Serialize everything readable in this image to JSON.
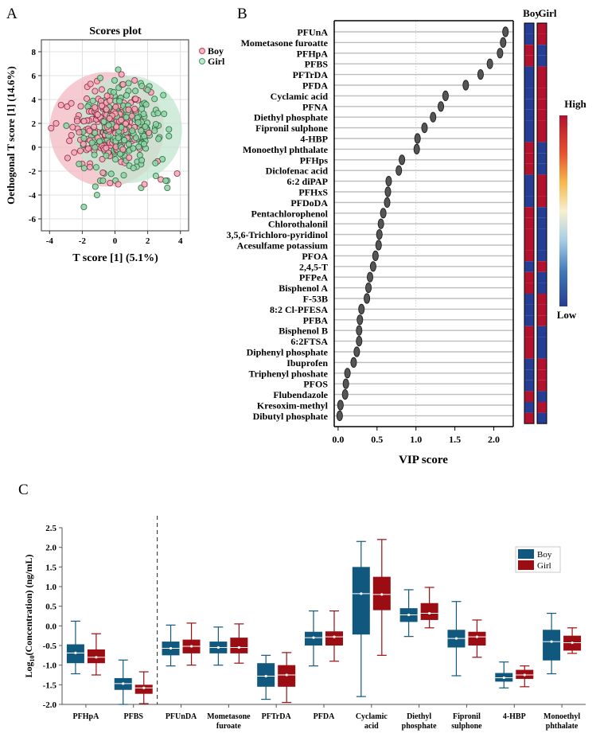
{
  "chart_data": [
    {
      "panel": "A",
      "type": "scatter",
      "title": "Scores plot",
      "xlabel": "T score [1] (5.1%)",
      "ylabel": "Oethogonal T score [1] (14.6%)",
      "xlim": [
        -4.5,
        4.5
      ],
      "ylim": [
        -7,
        9
      ],
      "xticks": [
        -4,
        -2,
        0,
        2,
        4
      ],
      "yticks": [
        -6,
        -4,
        -2,
        0,
        2,
        4,
        6,
        8
      ],
      "grid": true,
      "legend": {
        "position": "top-right",
        "entries": [
          "Boy",
          "Girl"
        ]
      },
      "colors": {
        "Boy": "#e0607e",
        "Girl": "#6cc38a"
      },
      "ellipses": [
        {
          "name": "Boy",
          "center": [
            -0.5,
            1.5
          ],
          "rx": 3.5,
          "ry": 4.8,
          "color": "#f2b8c2"
        },
        {
          "name": "Girl",
          "center": [
            0.8,
            1.5
          ],
          "rx": 3.3,
          "ry": 4.5,
          "color": "#c3e6cf"
        }
      ],
      "series": [
        {
          "name": "Boy",
          "n_points": 200,
          "mean": [
            -0.4,
            1.8
          ],
          "sd": [
            1.1,
            1.5
          ],
          "points": [
            [
              -3.9,
              1.6
            ],
            [
              -3.6,
              2.0
            ],
            [
              -2.0,
              -1.4
            ],
            [
              2.8,
              -2.7
            ],
            [
              3.8,
              -2.2
            ],
            [
              1.8,
              -3.1
            ],
            [
              -0.3,
              -3.0
            ],
            [
              0.2,
              -3.1
            ],
            [
              0.4,
              6.1
            ],
            [
              1.2,
              5.6
            ],
            [
              -1.5,
              5.3
            ],
            [
              1.9,
              4.9
            ],
            [
              2.2,
              4.6
            ],
            [
              -2.9,
              -0.9
            ]
          ]
        },
        {
          "name": "Girl",
          "n_points": 200,
          "mean": [
            0.5,
            1.4
          ],
          "sd": [
            1.2,
            1.7
          ],
          "points": [
            [
              -1.9,
              -5.0
            ],
            [
              -1.1,
              -4.0
            ],
            [
              -1.2,
              -3.3
            ],
            [
              1.6,
              -3.4
            ],
            [
              3.1,
              -2.8
            ],
            [
              3.2,
              -3.4
            ],
            [
              2.9,
              -1.0
            ],
            [
              0.2,
              6.5
            ],
            [
              2.1,
              5.1
            ],
            [
              2.0,
              4.8
            ],
            [
              -0.9,
              5.8
            ],
            [
              3.3,
              1.5
            ],
            [
              -2.2,
              -1.4
            ],
            [
              2.5,
              -2.4
            ],
            [
              1.8,
              3.7
            ],
            [
              -0.9,
              -2.8
            ]
          ]
        }
      ]
    },
    {
      "panel": "B",
      "type": "scatter",
      "title": "",
      "xlabel": "VIP score",
      "xlim": [
        -0.05,
        2.25
      ],
      "xticks": [
        0.0,
        0.5,
        1.0,
        1.5,
        2.0
      ],
      "tick_labels": [
        "0.0",
        "0.5",
        "1.0",
        "1.5",
        "2.0"
      ],
      "categories": [
        "PFUnA",
        "Mometasone furoatte",
        "PFHpA",
        "PFBS",
        "PFTrDA",
        "PFDA",
        "Cyclamic acid",
        "PFNA",
        "Diethyl phosphate",
        "Fipronil sulphone",
        "4-HBP",
        "Monoethyl phthalate",
        "PFHps",
        "Diclofenac acid",
        "6:2 diPAP",
        "PFHxS",
        "PFDoDA",
        "Pentachlorophenol",
        "Chlorothalonil",
        "3,5,6-Trichloro-pyridinol",
        "Acesulfame potassium",
        "PFOA",
        "2,4,5-T",
        "PFPeA",
        "Bisphenol A",
        "F-53B",
        "8:2 Cl-PFESA",
        "PFBA",
        "Bisphenol B",
        "6:2FTSA",
        "Diphenyl phosphate",
        "Ibuprofen",
        "Triphenyl phoshate",
        "PFOS",
        "Flubendazole",
        "Kresoxim-methyl",
        "Dibutyl phosphate"
      ],
      "values": [
        2.15,
        2.12,
        2.08,
        1.95,
        1.83,
        1.64,
        1.38,
        1.32,
        1.22,
        1.11,
        1.02,
        1.01,
        0.82,
        0.78,
        0.65,
        0.64,
        0.63,
        0.58,
        0.55,
        0.53,
        0.52,
        0.48,
        0.45,
        0.41,
        0.39,
        0.37,
        0.3,
        0.28,
        0.27,
        0.27,
        0.24,
        0.2,
        0.12,
        0.1,
        0.09,
        0.03,
        0.02
      ],
      "heatmap": {
        "columns": [
          "Boy",
          "Girl"
        ],
        "high_label": "High",
        "low_label": "Low",
        "high_color": "#b3122e",
        "low_color": "#253d92",
        "boy_high": [
          false,
          false,
          true,
          true,
          false,
          false,
          false,
          false,
          false,
          false,
          false,
          true,
          true,
          true,
          false,
          false,
          false,
          true,
          true,
          true,
          true,
          true,
          false,
          true,
          true,
          false,
          false,
          false,
          true,
          true,
          true,
          false,
          false,
          false,
          true,
          false,
          true
        ],
        "girl_high": [
          true,
          true,
          false,
          false,
          true,
          true,
          true,
          true,
          true,
          true,
          true,
          false,
          false,
          false,
          true,
          true,
          true,
          false,
          false,
          false,
          false,
          false,
          true,
          false,
          false,
          true,
          true,
          true,
          false,
          false,
          false,
          true,
          true,
          true,
          false,
          true,
          false
        ]
      }
    },
    {
      "panel": "C",
      "type": "box",
      "ylabel": "Log10(Concentration) (ng/mL)",
      "ylabel_main": "Log",
      "ylabel_sub": "10",
      "ylabel_rest": "(Concentration) (ng/mL)",
      "ylim": [
        -2.0,
        2.5
      ],
      "yticks": [
        -2.0,
        -1.5,
        -1.0,
        -0.5,
        0.0,
        0.5,
        1.0,
        1.5,
        2.0,
        2.5
      ],
      "ytick_labels": [
        "-2.0",
        "-1.5",
        "-1.0",
        "-0.5",
        "0.0",
        "0.5",
        "1.0",
        "1.5",
        "2.0",
        "2.5"
      ],
      "separator_after_index": 1,
      "legend": {
        "position": "top-right",
        "entries": [
          "Boy",
          "Girl"
        ]
      },
      "colors": {
        "Boy": "#11587f",
        "Girl": "#9b0d13"
      },
      "categories": [
        {
          "lines": [
            "PFHpA"
          ],
          "boy": [
            -1.22,
            -0.95,
            -0.69,
            -0.47,
            0.12
          ],
          "girl": [
            -1.25,
            -0.95,
            -0.8,
            -0.6,
            -0.2
          ]
        },
        {
          "lines": [
            "PFBS"
          ],
          "boy": [
            -2.0,
            -1.63,
            -1.47,
            -1.33,
            -0.87
          ],
          "girl": [
            -1.98,
            -1.73,
            -1.58,
            -1.5,
            -1.17
          ]
        },
        {
          "lines": [
            "PFUnDA"
          ],
          "boy": [
            -1.02,
            -0.75,
            -0.57,
            -0.4,
            0.02
          ],
          "girl": [
            -1.0,
            -0.7,
            -0.52,
            -0.35,
            0.07
          ]
        },
        {
          "lines": [
            "Mometasone",
            "furoate"
          ],
          "boy": [
            -1.0,
            -0.7,
            -0.55,
            -0.4,
            -0.03
          ],
          "girl": [
            -0.95,
            -0.7,
            -0.55,
            -0.3,
            0.05
          ]
        },
        {
          "lines": [
            "PFTrDA"
          ],
          "boy": [
            -1.87,
            -1.55,
            -1.28,
            -0.95,
            -0.75
          ],
          "girl": [
            -1.95,
            -1.55,
            -1.25,
            -1.0,
            -0.68
          ]
        },
        {
          "lines": [
            "PFDA"
          ],
          "boy": [
            -1.02,
            -0.5,
            -0.3,
            -0.15,
            0.38
          ],
          "girl": [
            -0.9,
            -0.5,
            -0.28,
            -0.14,
            0.38
          ]
        },
        {
          "lines": [
            "Cyclamic",
            "acid"
          ],
          "boy": [
            -1.8,
            -0.22,
            0.82,
            1.5,
            2.15
          ],
          "girl": [
            -0.75,
            0.4,
            0.8,
            1.25,
            2.2
          ]
        },
        {
          "lines": [
            "Diethyl",
            "phosphate"
          ],
          "boy": [
            -0.27,
            0.1,
            0.28,
            0.45,
            0.92
          ],
          "girl": [
            -0.05,
            0.15,
            0.32,
            0.58,
            0.98
          ]
        },
        {
          "lines": [
            "Fipronil",
            "sulphone"
          ],
          "boy": [
            -1.27,
            -0.55,
            -0.32,
            -0.1,
            0.62
          ],
          "girl": [
            -0.8,
            -0.5,
            -0.28,
            -0.15,
            0.15
          ]
        },
        {
          "lines": [
            "4-HBP"
          ],
          "boy": [
            -1.58,
            -1.42,
            -1.32,
            -1.2,
            -0.92
          ],
          "girl": [
            -1.55,
            -1.35,
            -1.25,
            -1.12,
            -1.02
          ]
        },
        {
          "lines": [
            "Monoethyl",
            "phthalate"
          ],
          "boy": [
            -1.22,
            -0.88,
            -0.4,
            -0.1,
            0.32
          ],
          "girl": [
            -0.7,
            -0.63,
            -0.43,
            -0.25,
            -0.05
          ]
        }
      ]
    }
  ],
  "labels": {
    "panel_a": "A",
    "panel_b": "B",
    "panel_c": "C",
    "legend_boy": "Boy",
    "legend_girl": "Girl",
    "heat_boy": "Boy",
    "heat_girl": "Girl"
  }
}
